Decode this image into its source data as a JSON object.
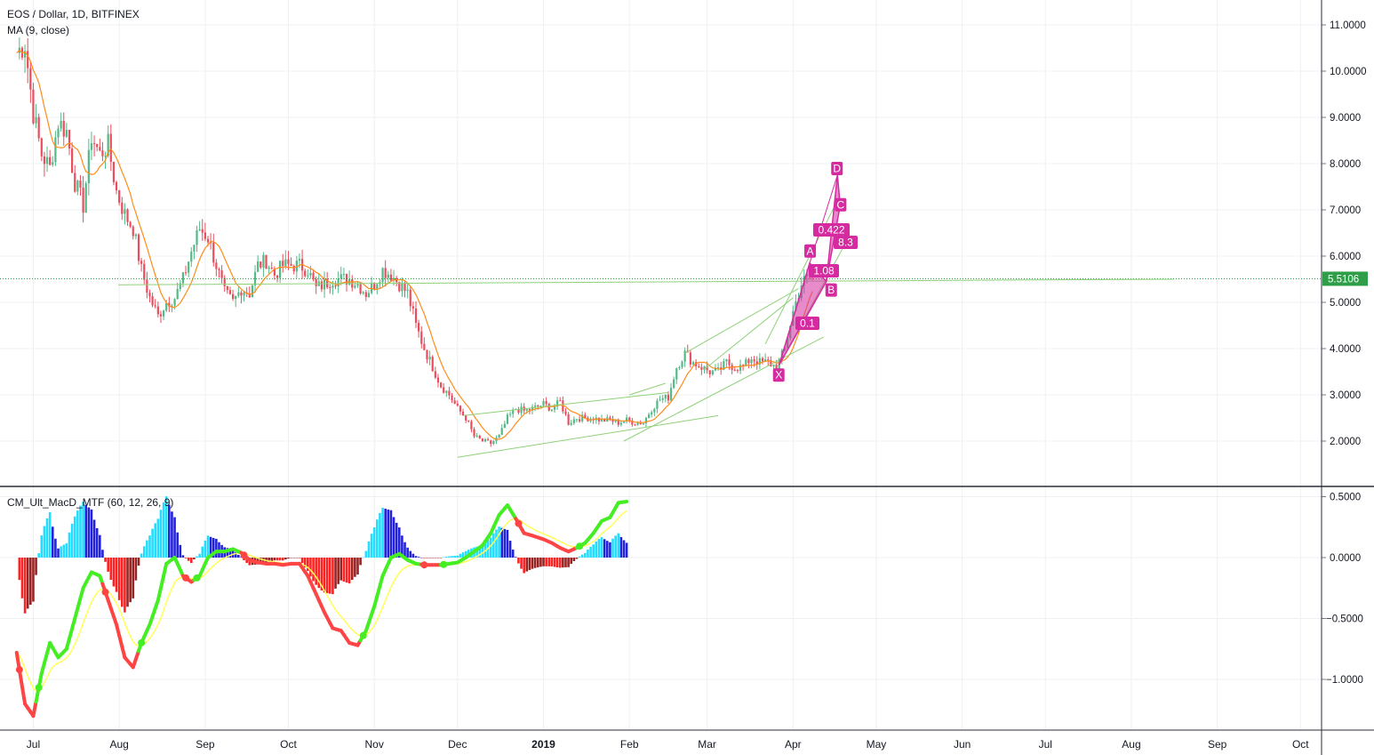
{
  "header": {
    "symbol": "EOS / Dollar, 1D, BITFINEX",
    "ma_indicator": "MA (9, close)",
    "macd_indicator": "CM_Ult_MacD_MTF (60, 12, 26, 9)"
  },
  "colors": {
    "up_candle": "#53b987",
    "down_candle": "#eb4d5c",
    "ma_line": "#ff8c1a",
    "pattern": "#d62ba0",
    "trendline": "#8fd17a",
    "price_line": "#2e9e49",
    "macd_up": "#44ee22",
    "macd_down": "#ff4444",
    "signal": "#ffff55",
    "hist_cyan": "#22ddff",
    "hist_blue": "#2222dd",
    "hist_red": "#ff2222",
    "hist_maroon": "#992222"
  },
  "chart_data": [
    {
      "type": "candlestick",
      "title": "EOS / Dollar, 1D, BITFINEX",
      "ylim": [
        1.2,
        11.3
      ],
      "y_ticks": [
        "11.0000",
        "10.0000",
        "9.0000",
        "8.0000",
        "7.0000",
        "6.0000",
        "5.0000",
        "4.0000",
        "3.0000",
        "2.0000"
      ],
      "x_ticks": [
        "Jul",
        "Aug",
        "Sep",
        "Oct",
        "Nov",
        "Dec",
        "2019",
        "Feb",
        "Mar",
        "Apr",
        "May",
        "Jun",
        "Jul",
        "Aug",
        "Sep",
        "Oct"
      ],
      "last_price": "5.5106",
      "series": [
        {
          "name": "MA (9, close)",
          "kind": "line"
        }
      ],
      "close_path": [
        [
          "2018-06-25",
          10.4
        ],
        [
          "2018-06-28",
          10.6
        ],
        [
          "2018-07-01",
          9.1
        ],
        [
          "2018-07-04",
          8.2
        ],
        [
          "2018-07-07",
          7.9
        ],
        [
          "2018-07-10",
          8.9
        ],
        [
          "2018-07-13",
          8.7
        ],
        [
          "2018-07-16",
          7.6
        ],
        [
          "2018-07-19",
          7.1
        ],
        [
          "2018-07-22",
          8.6
        ],
        [
          "2018-07-25",
          8.2
        ],
        [
          "2018-07-28",
          8.4
        ],
        [
          "2018-07-31",
          7.4
        ],
        [
          "2018-08-03",
          6.9
        ],
        [
          "2018-08-06",
          6.6
        ],
        [
          "2018-08-09",
          5.7
        ],
        [
          "2018-08-12",
          5.1
        ],
        [
          "2018-08-15",
          4.7
        ],
        [
          "2018-08-18",
          5.0
        ],
        [
          "2018-08-21",
          5.1
        ],
        [
          "2018-08-24",
          5.5
        ],
        [
          "2018-08-27",
          6.1
        ],
        [
          "2018-08-30",
          6.6
        ],
        [
          "2018-09-02",
          6.4
        ],
        [
          "2018-09-05",
          5.8
        ],
        [
          "2018-09-08",
          5.2
        ],
        [
          "2018-09-11",
          5.0
        ],
        [
          "2018-09-14",
          5.3
        ],
        [
          "2018-09-17",
          5.2
        ],
        [
          "2018-09-20",
          5.8
        ],
        [
          "2018-09-23",
          5.9
        ],
        [
          "2018-09-26",
          5.6
        ],
        [
          "2018-09-29",
          5.8
        ],
        [
          "2018-10-02",
          5.8
        ],
        [
          "2018-10-05",
          5.8
        ],
        [
          "2018-10-08",
          5.7
        ],
        [
          "2018-10-11",
          5.3
        ],
        [
          "2018-10-14",
          5.4
        ],
        [
          "2018-10-17",
          5.5
        ],
        [
          "2018-10-20",
          5.5
        ],
        [
          "2018-10-23",
          5.5
        ],
        [
          "2018-10-26",
          5.4
        ],
        [
          "2018-10-29",
          5.2
        ],
        [
          "2018-11-01",
          5.4
        ],
        [
          "2018-11-04",
          5.7
        ],
        [
          "2018-11-07",
          5.6
        ],
        [
          "2018-11-10",
          5.4
        ],
        [
          "2018-11-13",
          5.2
        ],
        [
          "2018-11-16",
          4.5
        ],
        [
          "2018-11-19",
          4.0
        ],
        [
          "2018-11-22",
          3.6
        ],
        [
          "2018-11-25",
          3.2
        ],
        [
          "2018-11-28",
          3.0
        ],
        [
          "2018-12-01",
          2.7
        ],
        [
          "2018-12-04",
          2.5
        ],
        [
          "2018-12-07",
          2.1
        ],
        [
          "2018-12-10",
          2.0
        ],
        [
          "2018-12-13",
          1.95
        ],
        [
          "2018-12-16",
          2.1
        ],
        [
          "2018-12-19",
          2.5
        ],
        [
          "2018-12-22",
          2.7
        ],
        [
          "2018-12-25",
          2.65
        ],
        [
          "2018-12-28",
          2.7
        ],
        [
          "2019-01-01",
          2.8
        ],
        [
          "2019-01-04",
          2.7
        ],
        [
          "2019-01-07",
          2.85
        ],
        [
          "2019-01-10",
          2.4
        ],
        [
          "2019-01-13",
          2.5
        ],
        [
          "2019-01-16",
          2.5
        ],
        [
          "2019-01-19",
          2.5
        ],
        [
          "2019-01-22",
          2.45
        ],
        [
          "2019-01-25",
          2.45
        ],
        [
          "2019-01-28",
          2.4
        ],
        [
          "2019-01-31",
          2.45
        ],
        [
          "2019-02-03",
          2.4
        ],
        [
          "2019-02-06",
          2.4
        ],
        [
          "2019-02-09",
          2.7
        ],
        [
          "2019-02-12",
          2.9
        ],
        [
          "2019-02-15",
          2.95
        ],
        [
          "2019-02-18",
          3.6
        ],
        [
          "2019-02-21",
          3.9
        ],
        [
          "2019-02-24",
          3.7
        ],
        [
          "2019-02-27",
          3.6
        ],
        [
          "2019-03-02",
          3.5
        ],
        [
          "2019-03-05",
          3.5
        ],
        [
          "2019-03-08",
          3.7
        ],
        [
          "2019-03-11",
          3.6
        ],
        [
          "2019-03-14",
          3.6
        ],
        [
          "2019-03-17",
          3.8
        ],
        [
          "2019-03-20",
          3.7
        ],
        [
          "2019-03-23",
          3.7
        ],
        [
          "2019-03-26",
          3.6
        ],
        [
          "2019-03-29",
          4.0
        ],
        [
          "2019-04-01",
          4.8
        ],
        [
          "2019-04-04",
          5.4
        ],
        [
          "2019-04-07",
          5.6
        ],
        [
          "2019-04-09",
          5.5
        ]
      ],
      "harmonic_pattern": {
        "points": [
          {
            "label": "X",
            "date": "2019-03-27",
            "price": 3.65
          },
          {
            "label": "A",
            "date": "2019-04-07",
            "price": 5.85
          },
          {
            "label": "B",
            "date": "2019-04-13",
            "price": 5.45
          },
          {
            "label": "C",
            "date": "2019-04-18",
            "price": 7.1
          },
          {
            "label": "D",
            "date": "2019-04-17",
            "price": 7.75
          }
        ],
        "ratios": [
          "1.08",
          "0.422",
          "8.3",
          "0.1"
        ]
      }
    },
    {
      "type": "area",
      "title": "CM_Ult_MacD_MTF (60, 12, 26, 9)",
      "ylim": [
        -1.45,
        0.5
      ],
      "y_ticks": [
        "0.5000",
        "0.0000",
        "-0.5000",
        "-1.0000"
      ],
      "series": [
        {
          "name": "MACD",
          "points": [
            [
              "2018-06-25",
              -0.78
            ],
            [
              "2018-06-28",
              -1.2
            ],
            [
              "2018-07-01",
              -1.3
            ],
            [
              "2018-07-04",
              -0.95
            ],
            [
              "2018-07-07",
              -0.7
            ],
            [
              "2018-07-10",
              -0.82
            ],
            [
              "2018-07-13",
              -0.75
            ],
            [
              "2018-07-16",
              -0.5
            ],
            [
              "2018-07-19",
              -0.25
            ],
            [
              "2018-07-22",
              -0.12
            ],
            [
              "2018-07-25",
              -0.15
            ],
            [
              "2018-07-28",
              -0.35
            ],
            [
              "2018-07-31",
              -0.55
            ],
            [
              "2018-08-03",
              -0.82
            ],
            [
              "2018-08-06",
              -0.9
            ],
            [
              "2018-08-09",
              -0.7
            ],
            [
              "2018-08-12",
              -0.55
            ],
            [
              "2018-08-15",
              -0.35
            ],
            [
              "2018-08-18",
              -0.05
            ],
            [
              "2018-08-21",
              0.0
            ],
            [
              "2018-08-24",
              -0.15
            ],
            [
              "2018-08-27",
              -0.2
            ],
            [
              "2018-08-30",
              -0.15
            ],
            [
              "2018-09-02",
              0.0
            ],
            [
              "2018-09-05",
              0.05
            ],
            [
              "2018-09-08",
              0.05
            ],
            [
              "2018-09-11",
              0.07
            ],
            [
              "2018-09-14",
              0.04
            ],
            [
              "2018-09-17",
              -0.02
            ],
            [
              "2018-09-20",
              -0.04
            ],
            [
              "2018-09-23",
              -0.05
            ],
            [
              "2018-09-26",
              -0.05
            ],
            [
              "2018-09-29",
              -0.06
            ],
            [
              "2018-10-02",
              -0.05
            ],
            [
              "2018-10-05",
              -0.05
            ],
            [
              "2018-10-08",
              -0.15
            ],
            [
              "2018-10-11",
              -0.3
            ],
            [
              "2018-10-14",
              -0.45
            ],
            [
              "2018-10-17",
              -0.58
            ],
            [
              "2018-10-20",
              -0.6
            ],
            [
              "2018-10-23",
              -0.7
            ],
            [
              "2018-10-26",
              -0.72
            ],
            [
              "2018-10-29",
              -0.6
            ],
            [
              "2018-11-01",
              -0.4
            ],
            [
              "2018-11-04",
              -0.15
            ],
            [
              "2018-11-07",
              0.0
            ],
            [
              "2018-11-10",
              0.03
            ],
            [
              "2018-11-13",
              -0.02
            ],
            [
              "2018-11-16",
              -0.05
            ],
            [
              "2018-11-19",
              -0.06
            ],
            [
              "2018-11-22",
              -0.06
            ],
            [
              "2018-11-25",
              -0.06
            ],
            [
              "2018-11-28",
              -0.05
            ],
            [
              "2018-12-01",
              -0.04
            ],
            [
              "2018-12-04",
              0.0
            ],
            [
              "2018-12-07",
              0.05
            ],
            [
              "2018-12-10",
              0.1
            ],
            [
              "2018-12-13",
              0.2
            ],
            [
              "2018-12-16",
              0.35
            ],
            [
              "2018-12-19",
              0.43
            ],
            [
              "2018-12-22",
              0.32
            ],
            [
              "2018-12-25",
              0.2
            ],
            [
              "2018-12-28",
              0.18
            ],
            [
              "2019-01-01",
              0.15
            ],
            [
              "2019-01-04",
              0.12
            ],
            [
              "2019-01-07",
              0.08
            ],
            [
              "2019-01-10",
              0.05
            ],
            [
              "2019-01-13",
              0.08
            ],
            [
              "2019-01-16",
              0.12
            ],
            [
              "2019-01-19",
              0.2
            ],
            [
              "2019-01-22",
              0.3
            ],
            [
              "2019-01-25",
              0.33
            ],
            [
              "2019-01-28",
              0.45
            ],
            [
              "2019-01-31",
              0.46
            ]
          ]
        },
        {
          "name": "Signal"
        }
      ]
    }
  ]
}
